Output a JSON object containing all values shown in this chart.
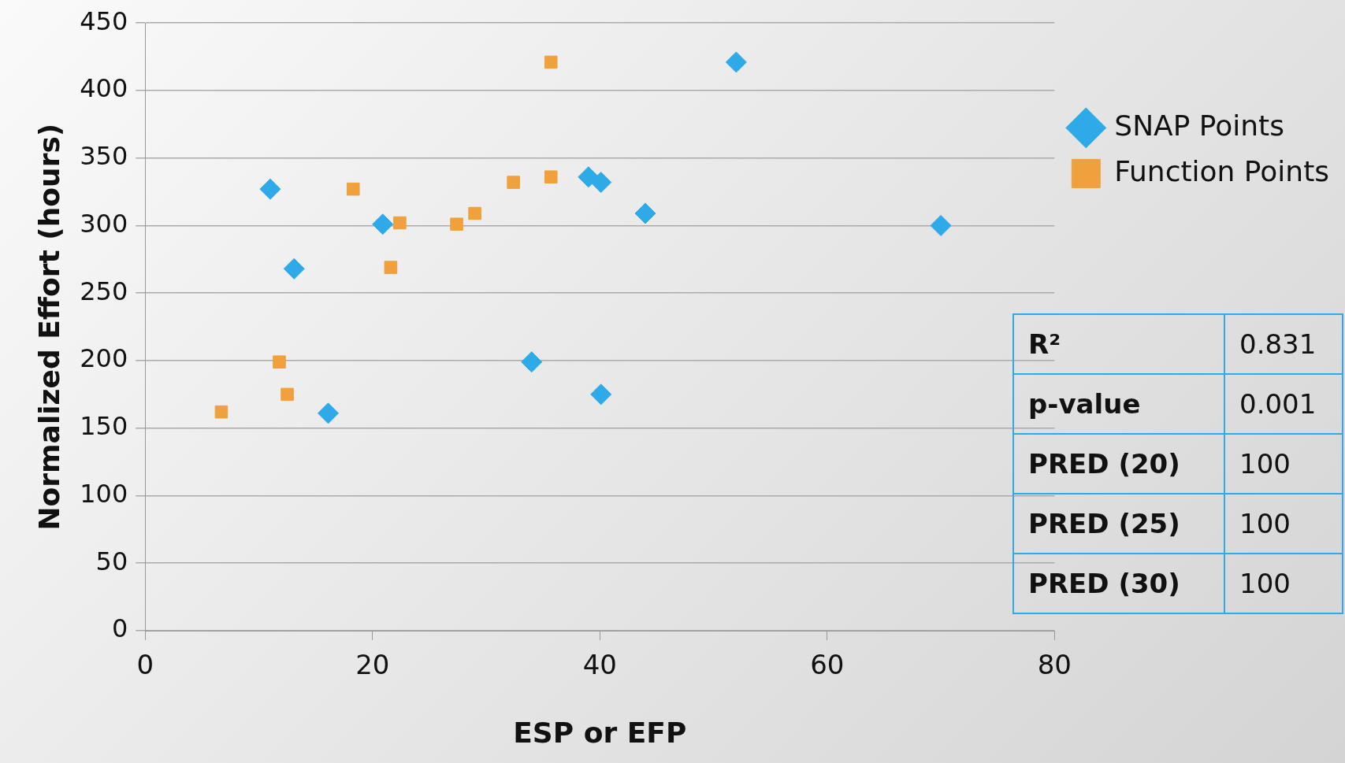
{
  "chart_data": {
    "type": "scatter",
    "xlabel": "ESP or EFP",
    "ylabel": "Normalized Effort (hours)",
    "xlim": [
      0,
      80
    ],
    "xticks": [
      0,
      20,
      40,
      60,
      80
    ],
    "ylim": [
      0,
      450
    ],
    "yticks": [
      0,
      50,
      100,
      150,
      200,
      250,
      300,
      350,
      400,
      450
    ],
    "grid": "y",
    "legend": "right",
    "series": [
      {
        "name": "SNAP Points",
        "color": "#2eaae8",
        "marker": "diamond",
        "x": [
          11.0,
          13.1,
          16.1,
          20.9,
          34.0,
          39.0,
          40.1,
          40.1,
          44.0,
          52.0,
          70.0
        ],
        "values": [
          327,
          268,
          161,
          301,
          199,
          336,
          332,
          175,
          309,
          421,
          300
        ]
      },
      {
        "name": "Function Points",
        "color": "#f0a03c",
        "marker": "square",
        "x": [
          6.7,
          11.8,
          12.5,
          18.3,
          21.6,
          22.4,
          27.4,
          29.0,
          32.4,
          35.7,
          35.7
        ],
        "values": [
          162,
          199,
          175,
          327,
          269,
          302,
          301,
          309,
          332,
          336,
          421
        ]
      }
    ],
    "annotations": [
      "R²",
      "0.831",
      "p-value",
      "0.001",
      "PRED (20)",
      "100",
      "PRED (25)",
      "100",
      "PRED (30)",
      "100"
    ]
  }
}
